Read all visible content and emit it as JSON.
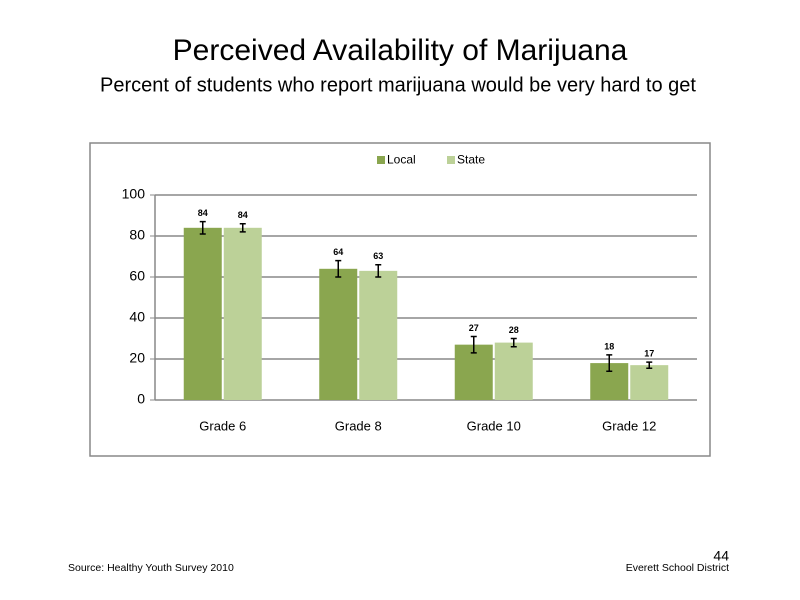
{
  "chart_data": {
    "type": "bar",
    "title": "Perceived  Availability  of Marijuana",
    "subtitle": "Percent of students who report marijuana  would be very hard to get",
    "categories": [
      "Grade 6",
      "Grade 8",
      "Grade 10",
      "Grade 12"
    ],
    "series": [
      {
        "name": "Local",
        "color": "#8aa64f",
        "values": [
          84,
          64,
          27,
          18
        ],
        "errors": [
          3,
          4,
          4,
          4
        ]
      },
      {
        "name": "State",
        "color": "#bcd198",
        "values": [
          84,
          63,
          28,
          17
        ],
        "errors": [
          2,
          3,
          2,
          1.5
        ]
      }
    ],
    "ylim": [
      0,
      100
    ],
    "yticks": [
      0,
      20,
      40,
      60,
      80,
      100
    ],
    "grid": true,
    "legend": "top"
  },
  "footer": {
    "source": "Source: Healthy Youth Survey 2010",
    "page_number": "44",
    "organization": "Everett School District"
  }
}
